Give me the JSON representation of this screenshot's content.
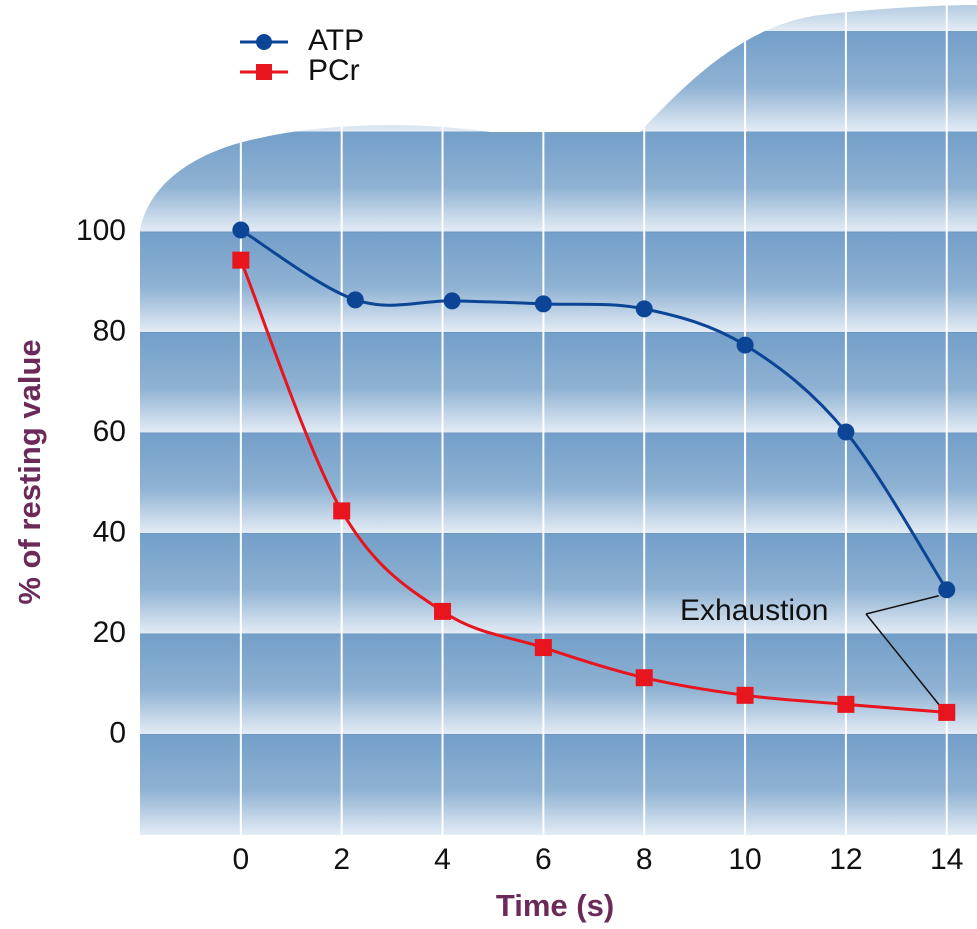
{
  "chart_data": {
    "type": "line",
    "xlabel": "Time (s)",
    "ylabel": "% of resting value",
    "xlim": [
      -2,
      14.6
    ],
    "ylim": [
      -20,
      100
    ],
    "xticks": [
      0,
      2,
      4,
      6,
      8,
      10,
      12,
      14
    ],
    "yticks": [
      0,
      20,
      40,
      60,
      80,
      100
    ],
    "grid": true,
    "legend": "top-left",
    "annotation": "Exhaustion",
    "series": [
      {
        "name": "ATP",
        "color": "#0d4596",
        "marker": "circle",
        "x": [
          0,
          2.27,
          4.19,
          6,
          8,
          10,
          12,
          14
        ],
        "values": [
          100.4,
          86.5,
          86.3,
          85.7,
          84.7,
          77.5,
          60.2,
          28.8
        ]
      },
      {
        "name": "PCr",
        "color": "#e8141e",
        "marker": "square",
        "x": [
          0,
          2,
          4,
          6,
          8,
          10,
          12,
          14
        ],
        "values": [
          94.4,
          44.5,
          24.5,
          17.3,
          11.3,
          7.8,
          6,
          4.4
        ]
      }
    ]
  }
}
